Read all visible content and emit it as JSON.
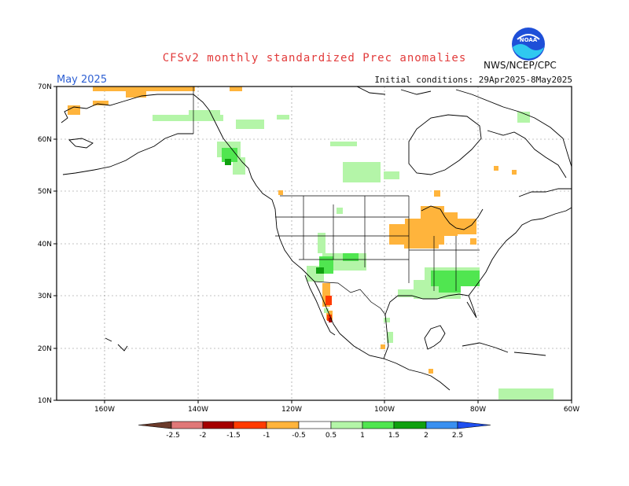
{
  "header": {
    "title": "CFSv2 monthly standardized Prec anomalies",
    "month": "May 2025",
    "initial_conditions": "Initial conditions: 29Apr2025-8May2025",
    "agency": "NWS/NCEP/CPC",
    "logo_text": "NOAA"
  },
  "map": {
    "lat_labels": [
      "70N",
      "60N",
      "50N",
      "40N",
      "30N",
      "20N",
      "10N"
    ],
    "lon_labels": [
      "160W",
      "140W",
      "120W",
      "100W",
      "80W",
      "60W"
    ]
  },
  "colorbar": {
    "labels": [
      "-2.5",
      "-2",
      "-1.5",
      "-1",
      "-0.5",
      "0.5",
      "1",
      "1.5",
      "2",
      "2.5"
    ],
    "colors": {
      "lt_-2.5": "#6b3a2a",
      "-2.5_-2": "#e07878",
      "-2_-1.5": "#a50000",
      "-1.5_-1": "#ff3b00",
      "-1_-0.5": "#ffb43c",
      "-0.5_0.5": "#ffffff",
      "0.5_1": "#b4f5a8",
      "1_1.5": "#50e650",
      "1.5_2": "#10a010",
      "2_2.5": "#3a90f0",
      "gt_2.5": "#1f4ff0"
    }
  }
}
